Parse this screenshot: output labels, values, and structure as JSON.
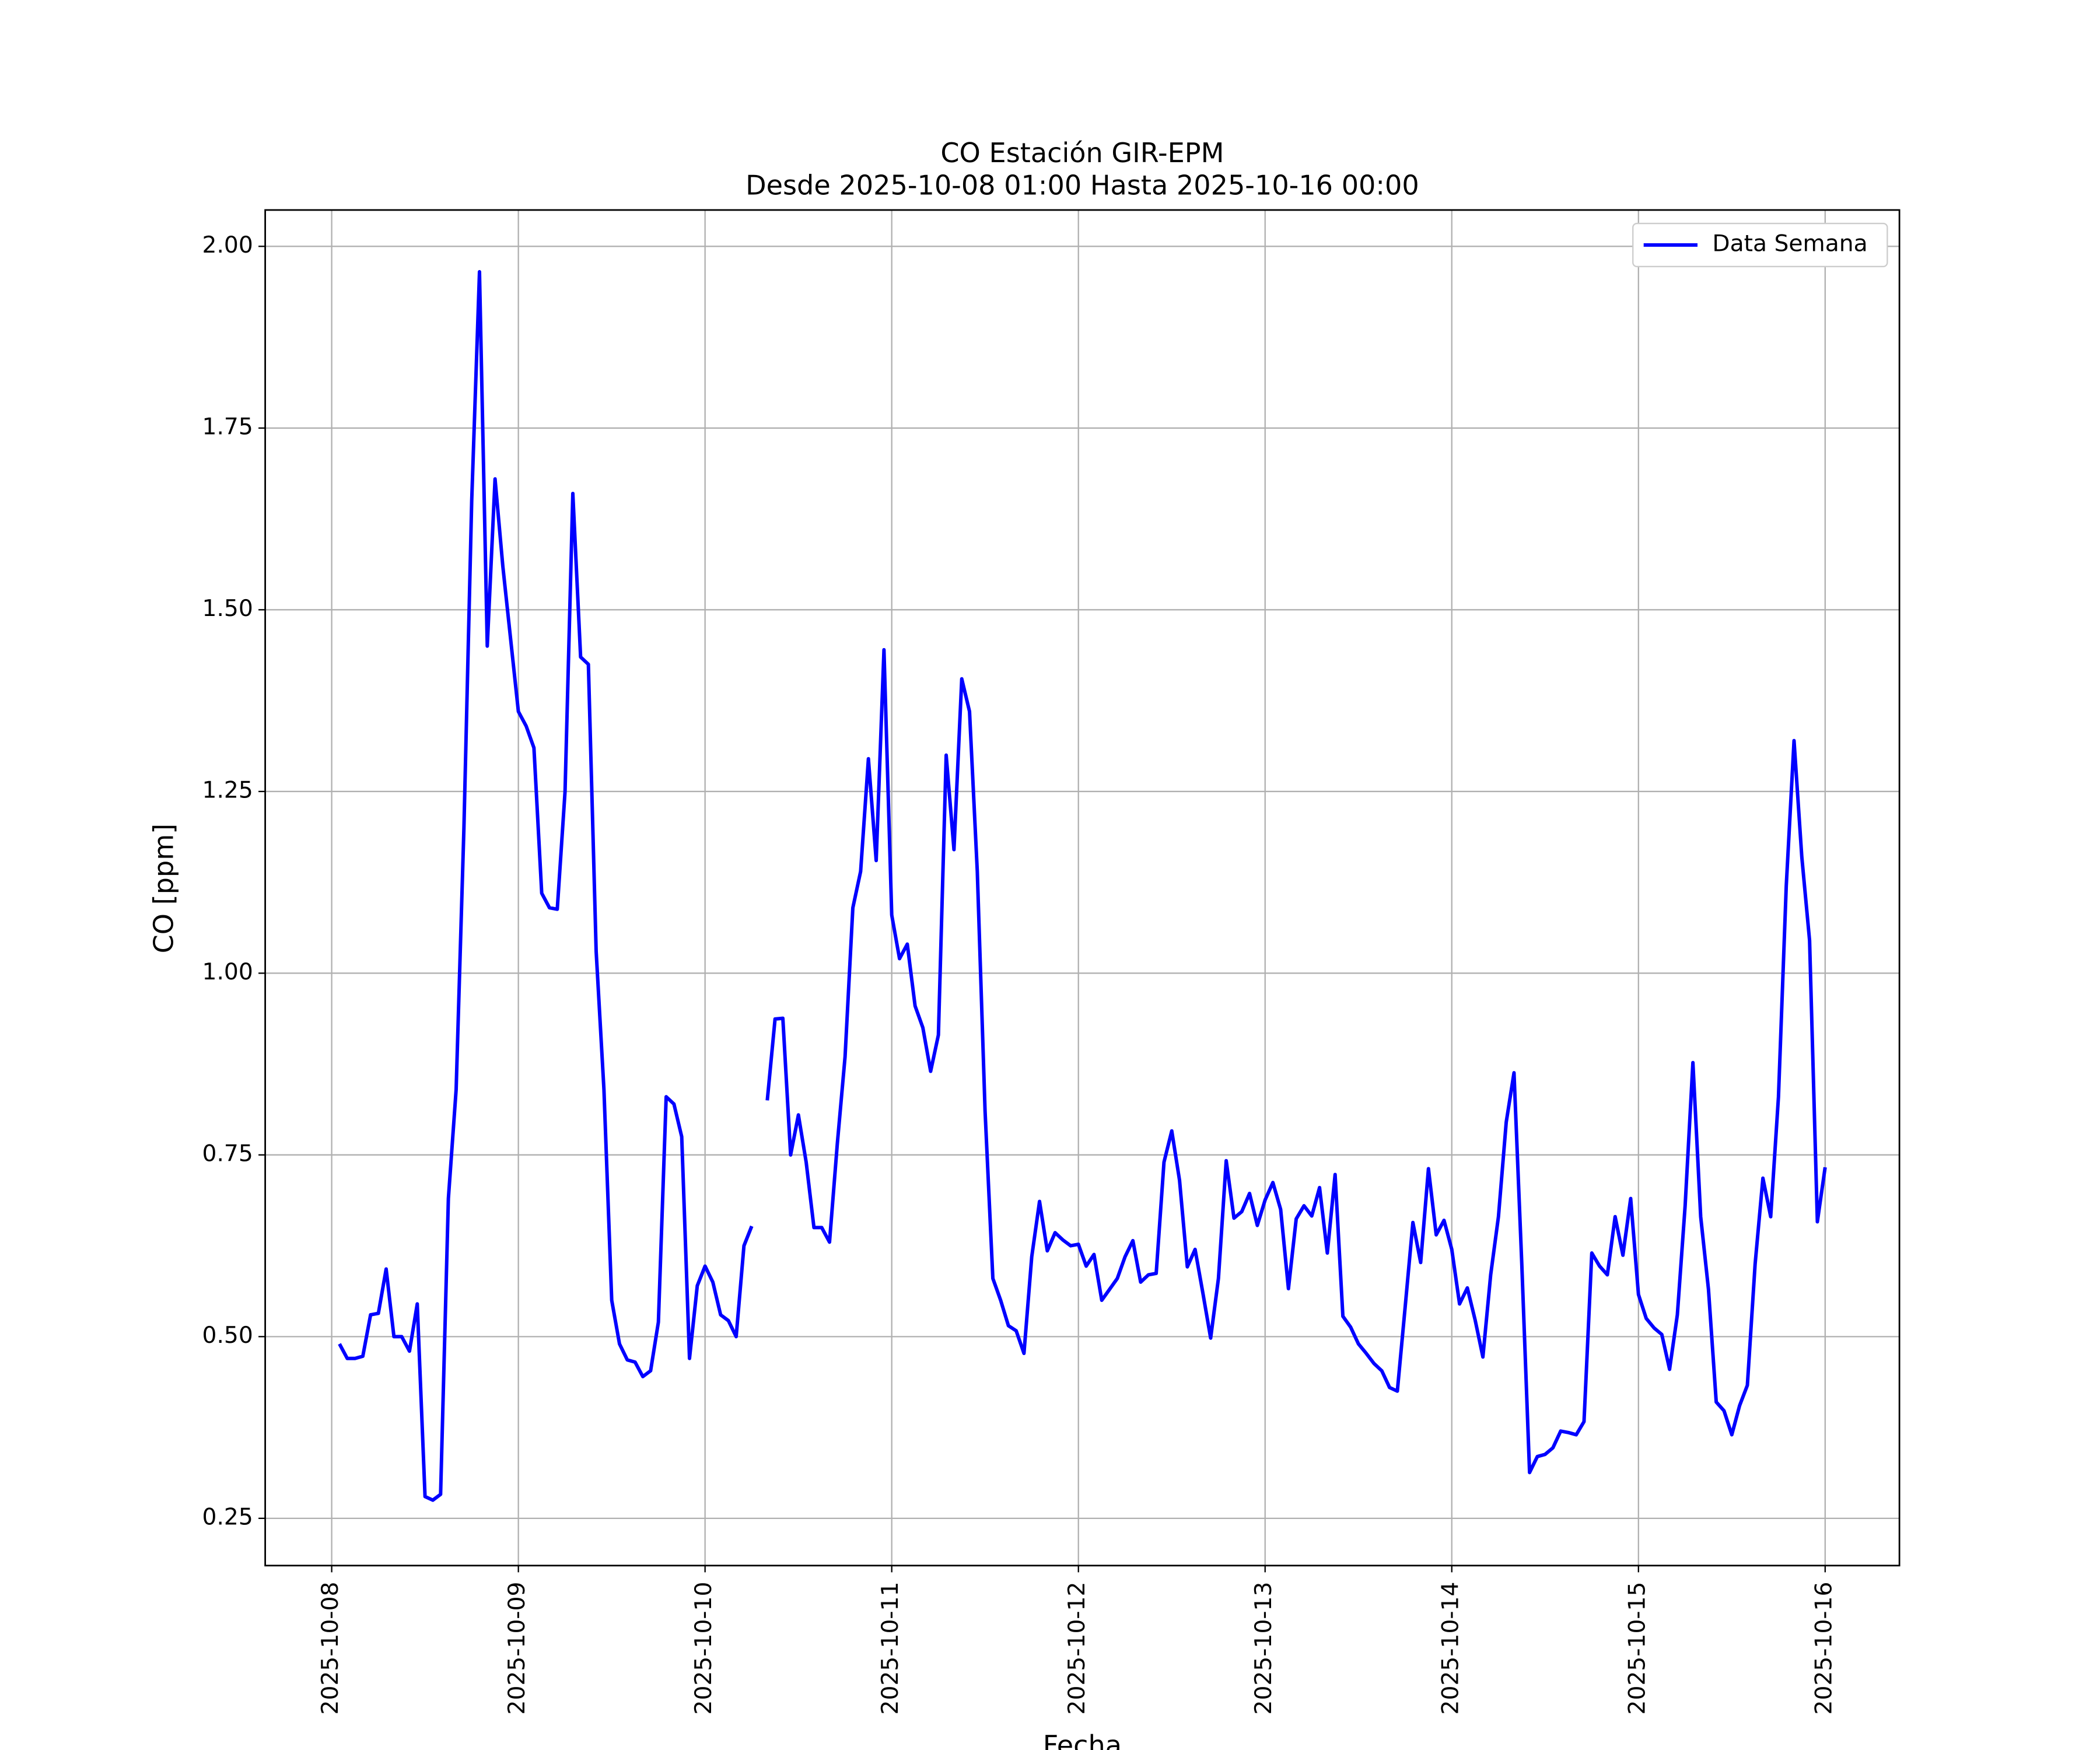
{
  "chart_data": {
    "type": "line",
    "title": "CO Estación GIR-EPM",
    "subtitle": "Desde 2025-10-08 01:00 Hasta 2025-10-16 00:00",
    "xlabel": "Fecha",
    "ylabel": "CO [ppm]",
    "grid": true,
    "legend": "upper right",
    "xlim": [
      "2025-10-07 15:27",
      "2025-10-16 09:33"
    ],
    "xticks": [
      "2025-10-08",
      "2025-10-09",
      "2025-10-10",
      "2025-10-11",
      "2025-10-12",
      "2025-10-13",
      "2025-10-14",
      "2025-10-15",
      "2025-10-16"
    ],
    "ylim": [
      0.185,
      2.05
    ],
    "yticks": [
      0.25,
      {
        "value": 0.5,
        "label": "0.50"
      },
      0.75,
      {
        "value": 1,
        "label": "1.00"
      },
      1.25,
      {
        "value": 1.5,
        "label": "1.50"
      },
      1.75,
      {
        "value": 2,
        "label": "2.00"
      }
    ],
    "x": [
      "2025-10-08 01:00",
      "2025-10-08 02:00",
      "2025-10-08 03:00",
      "2025-10-08 04:00",
      "2025-10-08 05:00",
      "2025-10-08 06:00",
      "2025-10-08 07:00",
      "2025-10-08 08:00",
      "2025-10-08 09:00",
      "2025-10-08 10:00",
      "2025-10-08 11:00",
      "2025-10-08 12:00",
      "2025-10-08 13:00",
      "2025-10-08 14:00",
      "2025-10-08 15:00",
      "2025-10-08 16:00",
      "2025-10-08 17:00",
      "2025-10-08 18:00",
      "2025-10-08 19:00",
      "2025-10-08 20:00",
      "2025-10-08 21:00",
      "2025-10-08 22:00",
      "2025-10-08 23:00",
      "2025-10-09 00:00",
      "2025-10-09 01:00",
      "2025-10-09 02:00",
      "2025-10-09 03:00",
      "2025-10-09 04:00",
      "2025-10-09 05:00",
      "2025-10-09 06:00",
      "2025-10-09 07:00",
      "2025-10-09 08:00",
      "2025-10-09 09:00",
      "2025-10-09 10:00",
      "2025-10-09 11:00",
      "2025-10-09 12:00",
      "2025-10-09 13:00",
      "2025-10-09 14:00",
      "2025-10-09 15:00",
      "2025-10-09 16:00",
      "2025-10-09 17:00",
      "2025-10-09 18:00",
      "2025-10-09 19:00",
      "2025-10-09 20:00",
      "2025-10-09 21:00",
      "2025-10-09 22:00",
      "2025-10-09 23:00",
      "2025-10-10 00:00",
      "2025-10-10 01:00",
      "2025-10-10 02:00",
      "2025-10-10 03:00",
      "2025-10-10 04:00",
      "2025-10-10 05:00",
      "2025-10-10 06:00",
      "2025-10-10 07:00",
      "2025-10-10 08:00",
      "2025-10-10 09:00",
      "2025-10-10 10:00",
      "2025-10-10 11:00",
      "2025-10-10 12:00",
      "2025-10-10 13:00",
      "2025-10-10 14:00",
      "2025-10-10 15:00",
      "2025-10-10 16:00",
      "2025-10-10 17:00",
      "2025-10-10 18:00",
      "2025-10-10 19:00",
      "2025-10-10 20:00",
      "2025-10-10 21:00",
      "2025-10-10 22:00",
      "2025-10-10 23:00",
      "2025-10-11 00:00",
      "2025-10-11 01:00",
      "2025-10-11 02:00",
      "2025-10-11 03:00",
      "2025-10-11 04:00",
      "2025-10-11 05:00",
      "2025-10-11 06:00",
      "2025-10-11 07:00",
      "2025-10-11 08:00",
      "2025-10-11 09:00",
      "2025-10-11 10:00",
      "2025-10-11 11:00",
      "2025-10-11 12:00",
      "2025-10-11 13:00",
      "2025-10-11 14:00",
      "2025-10-11 15:00",
      "2025-10-11 16:00",
      "2025-10-11 17:00",
      "2025-10-11 18:00",
      "2025-10-11 19:00",
      "2025-10-11 20:00",
      "2025-10-11 21:00",
      "2025-10-11 22:00",
      "2025-10-11 23:00",
      "2025-10-12 00:00",
      "2025-10-12 01:00",
      "2025-10-12 02:00",
      "2025-10-12 03:00",
      "2025-10-12 04:00",
      "2025-10-12 05:00",
      "2025-10-12 06:00",
      "2025-10-12 07:00",
      "2025-10-12 08:00",
      "2025-10-12 09:00",
      "2025-10-12 10:00",
      "2025-10-12 11:00",
      "2025-10-12 12:00",
      "2025-10-12 13:00",
      "2025-10-12 14:00",
      "2025-10-12 15:00",
      "2025-10-12 16:00",
      "2025-10-12 17:00",
      "2025-10-12 18:00",
      "2025-10-12 19:00",
      "2025-10-12 20:00",
      "2025-10-12 21:00",
      "2025-10-12 22:00",
      "2025-10-12 23:00",
      "2025-10-13 00:00",
      "2025-10-13 01:00",
      "2025-10-13 02:00",
      "2025-10-13 03:00",
      "2025-10-13 04:00",
      "2025-10-13 05:00",
      "2025-10-13 06:00",
      "2025-10-13 07:00",
      "2025-10-13 08:00",
      "2025-10-13 09:00",
      "2025-10-13 10:00",
      "2025-10-13 11:00",
      "2025-10-13 12:00",
      "2025-10-13 13:00",
      "2025-10-13 14:00",
      "2025-10-13 15:00",
      "2025-10-13 16:00",
      "2025-10-13 17:00",
      "2025-10-13 18:00",
      "2025-10-13 19:00",
      "2025-10-13 20:00",
      "2025-10-13 21:00",
      "2025-10-13 22:00",
      "2025-10-13 23:00",
      "2025-10-14 00:00",
      "2025-10-14 01:00",
      "2025-10-14 02:00",
      "2025-10-14 03:00",
      "2025-10-14 04:00",
      "2025-10-14 05:00",
      "2025-10-14 06:00",
      "2025-10-14 07:00",
      "2025-10-14 08:00",
      "2025-10-14 09:00",
      "2025-10-14 10:00",
      "2025-10-14 11:00",
      "2025-10-14 12:00",
      "2025-10-14 13:00",
      "2025-10-14 14:00",
      "2025-10-14 15:00",
      "2025-10-14 16:00",
      "2025-10-14 17:00",
      "2025-10-14 18:00",
      "2025-10-14 19:00",
      "2025-10-14 20:00",
      "2025-10-14 21:00",
      "2025-10-14 22:00",
      "2025-10-14 23:00",
      "2025-10-15 00:00",
      "2025-10-15 01:00",
      "2025-10-15 02:00",
      "2025-10-15 03:00",
      "2025-10-15 04:00",
      "2025-10-15 05:00",
      "2025-10-15 06:00",
      "2025-10-15 07:00",
      "2025-10-15 08:00",
      "2025-10-15 09:00",
      "2025-10-15 10:00",
      "2025-10-15 11:00",
      "2025-10-15 12:00",
      "2025-10-15 13:00",
      "2025-10-15 14:00",
      "2025-10-15 15:00",
      "2025-10-15 16:00",
      "2025-10-15 17:00",
      "2025-10-15 18:00",
      "2025-10-15 19:00",
      "2025-10-15 20:00",
      "2025-10-15 21:00",
      "2025-10-15 22:00",
      "2025-10-15 23:00",
      "2025-10-16 00:00"
    ],
    "series": [
      {
        "name": "Data Semana",
        "color": "#0000ff",
        "values": [
          0.49,
          0.47,
          0.47,
          0.473,
          0.53,
          0.532,
          0.593,
          0.5,
          0.5,
          0.48,
          0.545,
          0.28,
          0.275,
          0.283,
          0.69,
          0.84,
          1.2,
          1.65,
          1.965,
          1.45,
          1.68,
          1.56,
          1.46,
          1.36,
          1.34,
          1.31,
          1.11,
          1.09,
          1.088,
          1.25,
          1.66,
          1.435,
          1.425,
          1.03,
          0.84,
          0.55,
          0.49,
          0.468,
          0.465,
          0.445,
          0.453,
          0.52,
          0.83,
          0.82,
          0.775,
          0.47,
          0.57,
          0.597,
          0.575,
          0.53,
          0.522,
          0.5,
          0.625,
          0.652,
          null,
          0.825,
          0.937,
          0.938,
          0.75,
          0.805,
          0.74,
          0.65,
          0.65,
          0.63,
          0.765,
          0.885,
          1.09,
          1.14,
          1.295,
          1.155,
          1.445,
          1.08,
          1.02,
          1.04,
          0.955,
          0.925,
          0.865,
          0.915,
          1.3,
          1.17,
          1.405,
          1.36,
          1.14,
          0.81,
          0.58,
          0.55,
          0.515,
          0.508,
          0.477,
          0.61,
          0.686,
          0.618,
          0.643,
          0.633,
          0.625,
          0.627,
          0.597,
          0.613,
          0.55,
          0.565,
          0.58,
          0.61,
          0.632,
          0.575,
          0.585,
          0.587,
          0.74,
          0.783,
          0.715,
          0.596,
          0.62,
          0.56,
          0.498,
          0.58,
          0.742,
          0.663,
          0.672,
          0.697,
          0.653,
          0.688,
          0.712,
          0.675,
          0.566,
          0.662,
          0.68,
          0.666,
          0.705,
          0.615,
          0.723,
          0.528,
          0.513,
          0.49,
          0.477,
          0.463,
          0.453,
          0.43,
          0.425,
          0.54,
          0.657,
          0.602,
          0.731,
          0.64,
          0.66,
          0.62,
          0.545,
          0.567,
          0.523,
          0.472,
          0.585,
          0.665,
          0.795,
          0.863,
          0.6,
          0.313,
          0.335,
          0.338,
          0.347,
          0.37,
          0.368,
          0.365,
          0.383,
          0.615,
          0.597,
          0.585,
          0.665,
          0.612,
          0.69,
          0.558,
          0.525,
          0.512,
          0.503,
          0.455,
          0.53,
          0.68,
          0.877,
          0.665,
          0.565,
          0.41,
          0.398,
          0.365,
          0.405,
          0.433,
          0.6,
          0.718,
          0.665,
          0.83,
          1.12,
          1.32,
          1.16,
          1.045,
          0.658,
          0.733
        ]
      }
    ]
  }
}
